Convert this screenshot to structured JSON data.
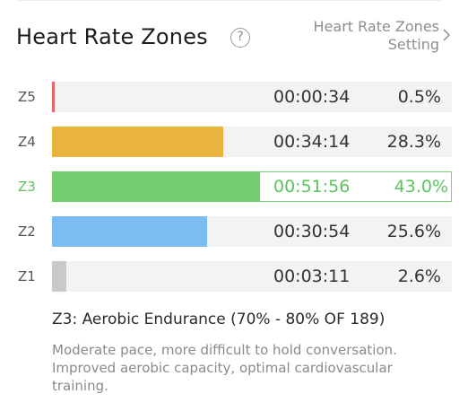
{
  "header": {
    "title": "Heart Rate Zones",
    "help_glyph": "?",
    "setting_line1": "Heart Rate Zones",
    "setting_line2": "Setting"
  },
  "zones": [
    {
      "label": "Z5",
      "time": "00:00:34",
      "percent": "0.5%",
      "fill_fraction": 0.005,
      "color": "#e4676b"
    },
    {
      "label": "Z4",
      "time": "00:34:14",
      "percent": "28.3%",
      "fill_fraction": 0.428,
      "color": "#e9b43c"
    },
    {
      "label": "Z3",
      "time": "00:51:56",
      "percent": "43.0%",
      "fill_fraction": 0.52,
      "color": "#72ce6e"
    },
    {
      "label": "Z2",
      "time": "00:30:54",
      "percent": "25.6%",
      "fill_fraction": 0.387,
      "color": "#7bbdf3"
    },
    {
      "label": "Z1",
      "time": "00:03:11",
      "percent": "2.6%",
      "fill_fraction": 0.036,
      "color": "#c9c9c9"
    }
  ],
  "highlighted_zone": "Z3",
  "accent_color": "#5cc45c",
  "zone_detail": {
    "title": "Z3: Aerobic Endurance (70% - 80% OF 189)",
    "description": "Moderate pace, more difficult to hold conversation. Improved aerobic capacity, optimal cardiovascular training."
  }
}
